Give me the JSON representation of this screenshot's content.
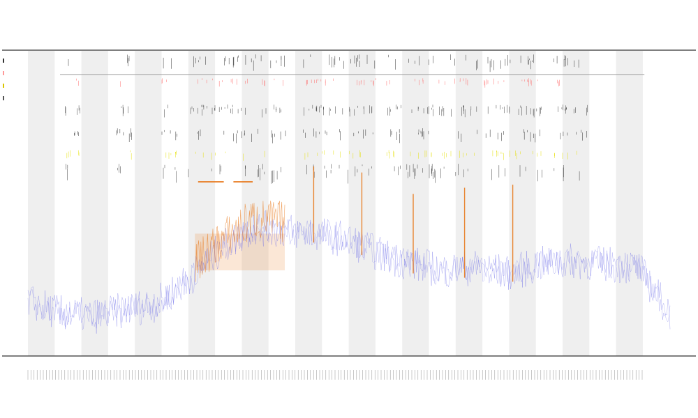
{
  "chart_data": {
    "type": "line",
    "title_lines": [
      "",
      "",
      ""
    ],
    "xlabel": "",
    "ylabel": "",
    "legend_entries": [
      {
        "color": "#333333"
      },
      {
        "color": "#ff9999"
      },
      {
        "color": "#d9c400"
      },
      {
        "color": "#555555"
      }
    ],
    "band_count": 12,
    "colors": {
      "main_line": "#6a6ae8",
      "highlight": "#e87a1e",
      "band": "#efefef",
      "axis": "#333333",
      "track_black": "#222222",
      "track_red": "#ff6666",
      "track_yellow": "#e6e000",
      "track_dark": "#333333",
      "range_bar": "#999999"
    },
    "profile": {
      "x": [
        0,
        5,
        10,
        15,
        20,
        25,
        30,
        35,
        40,
        45,
        50,
        55,
        60,
        65,
        70,
        75,
        80,
        85,
        90,
        95,
        100
      ],
      "y": [
        0.18,
        0.14,
        0.13,
        0.15,
        0.17,
        0.25,
        0.35,
        0.42,
        0.41,
        0.4,
        0.38,
        0.33,
        0.3,
        0.28,
        0.29,
        0.27,
        0.3,
        0.31,
        0.3,
        0.29,
        0.14
      ]
    },
    "orange_spikes": [
      {
        "x": 44.5,
        "y": 0.62
      },
      {
        "x": 52.0,
        "y": 0.6
      },
      {
        "x": 60.0,
        "y": 0.53
      },
      {
        "x": 68.0,
        "y": 0.55
      },
      {
        "x": 75.5,
        "y": 0.56
      }
    ],
    "highlight_region": {
      "x_start": 26.0,
      "x_end": 40.0
    },
    "orange_segments": [
      {
        "x_start": 26.5,
        "x_end": 30.5
      },
      {
        "x_start": 32.0,
        "x_end": 35.0
      }
    ],
    "range_bar": {
      "x_start": 5.0,
      "x_end": 96.0
    }
  }
}
